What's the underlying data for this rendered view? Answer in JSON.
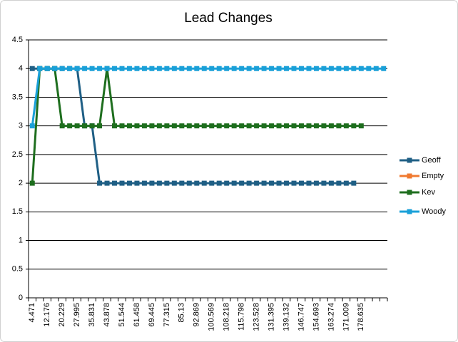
{
  "chart_data": {
    "type": "line",
    "title": "Lead Changes",
    "categories": [
      "4.471",
      null,
      "12.176",
      null,
      "20.229",
      null,
      "27.995",
      null,
      "35.831",
      null,
      "43.878",
      null,
      "51.544",
      null,
      "61.458",
      null,
      "69.445",
      null,
      "77.315",
      null,
      "85.13",
      null,
      "92.869",
      null,
      "100.569",
      null,
      "108.218",
      null,
      "115.798",
      null,
      "123.528",
      null,
      "131.395",
      null,
      "139.132",
      null,
      "146.747",
      null,
      "154.693",
      null,
      "163.274",
      null,
      "171.009",
      null,
      "178.635",
      null,
      null,
      null
    ],
    "series": [
      {
        "name": "Geoff",
        "color": "#1f5f85",
        "values": [
          4,
          4,
          4,
          4,
          4,
          4,
          4,
          3,
          3,
          2,
          2,
          2,
          2,
          2,
          2,
          2,
          2,
          2,
          2,
          2,
          2,
          2,
          2,
          2,
          2,
          2,
          2,
          2,
          2,
          2,
          2,
          2,
          2,
          2,
          2,
          2,
          2,
          2,
          2,
          2,
          2,
          2,
          2,
          2,
          null,
          null,
          null,
          null
        ]
      },
      {
        "name": "Empty",
        "color": "#f07a30",
        "values": [
          null,
          null,
          null,
          null,
          null,
          null,
          null,
          null,
          null,
          null,
          null,
          null,
          null,
          null,
          null,
          null,
          null,
          null,
          null,
          null,
          null,
          null,
          null,
          null,
          null,
          null,
          null,
          null,
          null,
          null,
          null,
          null,
          null,
          null,
          null,
          null,
          null,
          null,
          null,
          null,
          null,
          null,
          null,
          null,
          null,
          null,
          null,
          null
        ]
      },
      {
        "name": "Kev",
        "color": "#1e6e1e",
        "values": [
          2,
          4,
          4,
          4,
          3,
          3,
          3,
          3,
          3,
          3,
          4,
          3,
          3,
          3,
          3,
          3,
          3,
          3,
          3,
          3,
          3,
          3,
          3,
          3,
          3,
          3,
          3,
          3,
          3,
          3,
          3,
          3,
          3,
          3,
          3,
          3,
          3,
          3,
          3,
          3,
          3,
          3,
          3,
          3,
          3,
          null,
          null,
          null
        ]
      },
      {
        "name": "Woody",
        "color": "#1aa0d8",
        "values": [
          3,
          4,
          4,
          4,
          4,
          4,
          4,
          4,
          4,
          4,
          4,
          4,
          4,
          4,
          4,
          4,
          4,
          4,
          4,
          4,
          4,
          4,
          4,
          4,
          4,
          4,
          4,
          4,
          4,
          4,
          4,
          4,
          4,
          4,
          4,
          4,
          4,
          4,
          4,
          4,
          4,
          4,
          4,
          4,
          4,
          4,
          4,
          4
        ]
      }
    ],
    "ylim": [
      0,
      4.5
    ],
    "yticks": [
      0,
      0.5,
      1,
      1.5,
      2,
      2.5,
      3,
      3.5,
      4,
      4.5
    ],
    "grid": true,
    "legend": "right"
  }
}
